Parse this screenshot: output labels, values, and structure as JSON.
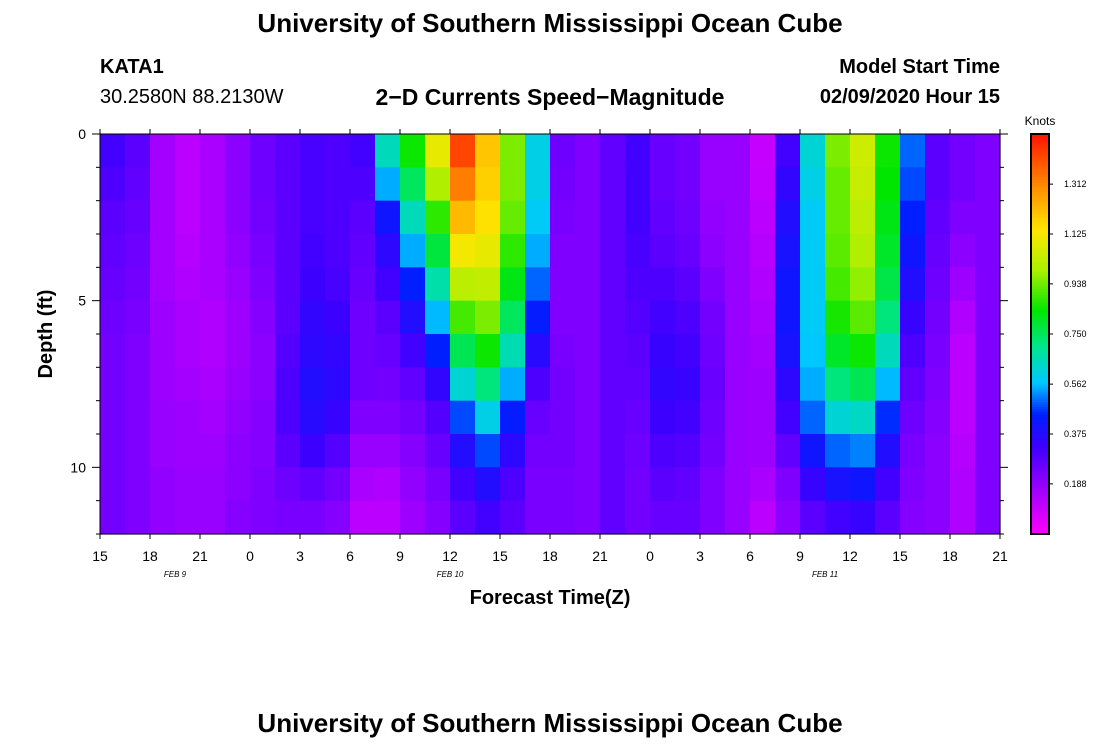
{
  "page": {
    "title_top": "University of Southern Mississippi Ocean Cube",
    "title_bottom": "University of Southern Mississippi Ocean Cube",
    "station_id": "KATA1",
    "station_coords": "30.2580N 88.2130W",
    "plot_title": "2−D Currents Speed−Magnitude",
    "model_start_label": "Model Start Time",
    "model_start_value": "02/09/2020 Hour 15"
  },
  "chart_data": {
    "type": "heatmap",
    "title": "2−D Currents Speed−Magnitude",
    "xlabel": "Forecast Time(Z)",
    "ylabel": "Depth (ft)",
    "x_tick_labels": [
      "15",
      "18",
      "21",
      "0",
      "3",
      "6",
      "9",
      "12",
      "15",
      "18",
      "21",
      "0",
      "3",
      "6",
      "9",
      "12",
      "15",
      "18",
      "21"
    ],
    "x_hours": [
      0,
      54
    ],
    "x_tick_interval_hours": 3,
    "date_labels": [
      {
        "label": "FEB 9",
        "hour": 4.5
      },
      {
        "label": "FEB 10",
        "hour": 21
      },
      {
        "label": "FEB 11",
        "hour": 43.5
      }
    ],
    "y_ticks": [
      0,
      5,
      10
    ],
    "ylim": [
      0,
      12
    ],
    "y_reversed": true,
    "colorbar": {
      "unit": "Knots",
      "min": 0.0,
      "max": 1.5,
      "tick_values": [
        0.188,
        0.375,
        0.562,
        0.75,
        0.938,
        1.125,
        1.312
      ],
      "tick_labels": [
        "0.188",
        "0.375",
        "0.562",
        "0.750",
        "0.938",
        "1.125",
        "1.312"
      ]
    },
    "grid_notes": "Columns: 1.5-hour steps from hour 0 to 54. Rows: depth bins 0-12 ft (1 ft). Values in knots.",
    "speed_profile": {
      "depth_bins_ft": [
        0,
        1,
        2,
        3,
        4,
        5,
        6,
        7,
        8,
        9,
        10,
        11
      ],
      "column_centers_hours": [
        0.75,
        2.25,
        3.75,
        5.25,
        6.75,
        8.25,
        9.75,
        11.25,
        12.75,
        14.25,
        15.75,
        17.25,
        18.75,
        20.25,
        21.75,
        23.25,
        24.75,
        26.25,
        27.75,
        29.25,
        30.75,
        32.25,
        33.75,
        35.25,
        36.75,
        38.25,
        39.75,
        41.25,
        42.75,
        44.25,
        45.75,
        47.25,
        48.75,
        50.25,
        51.75,
        53.25
      ]
    },
    "values": [
      [
        0.32,
        0.3,
        0.28,
        0.27,
        0.26,
        0.25,
        0.24,
        0.24,
        0.24,
        0.24,
        0.24,
        0.24
      ],
      [
        0.28,
        0.27,
        0.26,
        0.25,
        0.24,
        0.23,
        0.22,
        0.22,
        0.22,
        0.22,
        0.22,
        0.22
      ],
      [
        0.16,
        0.16,
        0.16,
        0.16,
        0.16,
        0.17,
        0.17,
        0.17,
        0.18,
        0.18,
        0.19,
        0.19
      ],
      [
        0.12,
        0.12,
        0.12,
        0.13,
        0.14,
        0.15,
        0.15,
        0.16,
        0.17,
        0.17,
        0.18,
        0.18
      ],
      [
        0.15,
        0.15,
        0.15,
        0.15,
        0.15,
        0.14,
        0.14,
        0.15,
        0.16,
        0.17,
        0.18,
        0.18
      ],
      [
        0.2,
        0.2,
        0.2,
        0.19,
        0.18,
        0.17,
        0.17,
        0.18,
        0.19,
        0.2,
        0.2,
        0.21
      ],
      [
        0.25,
        0.25,
        0.24,
        0.23,
        0.22,
        0.21,
        0.2,
        0.2,
        0.21,
        0.21,
        0.22,
        0.22
      ],
      [
        0.28,
        0.28,
        0.28,
        0.28,
        0.28,
        0.28,
        0.29,
        0.3,
        0.3,
        0.28,
        0.25,
        0.23
      ],
      [
        0.31,
        0.31,
        0.31,
        0.32,
        0.33,
        0.35,
        0.36,
        0.38,
        0.37,
        0.33,
        0.27,
        0.23
      ],
      [
        0.3,
        0.3,
        0.3,
        0.3,
        0.31,
        0.33,
        0.35,
        0.36,
        0.34,
        0.29,
        0.24,
        0.21
      ],
      [
        0.32,
        0.3,
        0.28,
        0.27,
        0.26,
        0.25,
        0.25,
        0.25,
        0.22,
        0.18,
        0.15,
        0.12
      ],
      [
        0.65,
        0.55,
        0.42,
        0.36,
        0.32,
        0.28,
        0.26,
        0.24,
        0.22,
        0.18,
        0.14,
        0.12
      ],
      [
        0.85,
        0.75,
        0.65,
        0.55,
        0.45,
        0.38,
        0.32,
        0.27,
        0.24,
        0.21,
        0.19,
        0.17
      ],
      [
        1.1,
        1.0,
        0.88,
        0.78,
        0.67,
        0.56,
        0.45,
        0.35,
        0.29,
        0.26,
        0.23,
        0.21
      ],
      [
        1.42,
        1.33,
        1.22,
        1.12,
        1.02,
        0.9,
        0.76,
        0.62,
        0.48,
        0.38,
        0.32,
        0.28
      ],
      [
        1.2,
        1.18,
        1.15,
        1.1,
        1.03,
        0.95,
        0.85,
        0.72,
        0.6,
        0.48,
        0.38,
        0.32
      ],
      [
        0.95,
        0.95,
        0.93,
        0.88,
        0.82,
        0.75,
        0.66,
        0.55,
        0.44,
        0.36,
        0.3,
        0.28
      ],
      [
        0.6,
        0.6,
        0.58,
        0.55,
        0.5,
        0.44,
        0.37,
        0.3,
        0.26,
        0.24,
        0.23,
        0.23
      ],
      [
        0.25,
        0.24,
        0.23,
        0.22,
        0.22,
        0.22,
        0.23,
        0.24,
        0.24,
        0.24,
        0.23,
        0.23
      ],
      [
        0.22,
        0.22,
        0.22,
        0.22,
        0.22,
        0.22,
        0.22,
        0.22,
        0.22,
        0.22,
        0.22,
        0.22
      ],
      [
        0.27,
        0.27,
        0.27,
        0.27,
        0.27,
        0.27,
        0.27,
        0.27,
        0.27,
        0.27,
        0.27,
        0.27
      ],
      [
        0.32,
        0.32,
        0.32,
        0.31,
        0.3,
        0.29,
        0.28,
        0.27,
        0.26,
        0.25,
        0.24,
        0.24
      ],
      [
        0.26,
        0.26,
        0.27,
        0.28,
        0.3,
        0.32,
        0.34,
        0.35,
        0.33,
        0.3,
        0.28,
        0.26
      ],
      [
        0.24,
        0.24,
        0.25,
        0.26,
        0.28,
        0.3,
        0.32,
        0.34,
        0.32,
        0.29,
        0.27,
        0.26
      ],
      [
        0.18,
        0.18,
        0.19,
        0.2,
        0.22,
        0.24,
        0.25,
        0.26,
        0.25,
        0.24,
        0.22,
        0.22
      ],
      [
        0.18,
        0.18,
        0.18,
        0.18,
        0.18,
        0.18,
        0.18,
        0.18,
        0.18,
        0.18,
        0.18,
        0.18
      ],
      [
        0.1,
        0.11,
        0.12,
        0.13,
        0.14,
        0.15,
        0.16,
        0.17,
        0.17,
        0.17,
        0.15,
        0.12
      ],
      [
        0.32,
        0.35,
        0.38,
        0.4,
        0.42,
        0.42,
        0.4,
        0.36,
        0.32,
        0.27,
        0.22,
        0.2
      ],
      [
        0.62,
        0.6,
        0.58,
        0.58,
        0.58,
        0.58,
        0.57,
        0.55,
        0.5,
        0.42,
        0.34,
        0.28
      ],
      [
        0.95,
        0.93,
        0.93,
        0.92,
        0.9,
        0.86,
        0.8,
        0.72,
        0.62,
        0.5,
        0.4,
        0.32
      ],
      [
        1.05,
        1.04,
        1.02,
        1.0,
        0.97,
        0.92,
        0.85,
        0.76,
        0.64,
        0.52,
        0.42,
        0.34
      ],
      [
        0.85,
        0.84,
        0.82,
        0.8,
        0.77,
        0.72,
        0.65,
        0.56,
        0.46,
        0.38,
        0.32,
        0.28
      ],
      [
        0.5,
        0.48,
        0.45,
        0.42,
        0.38,
        0.34,
        0.3,
        0.27,
        0.25,
        0.23,
        0.22,
        0.21
      ],
      [
        0.28,
        0.28,
        0.27,
        0.26,
        0.25,
        0.24,
        0.23,
        0.22,
        0.21,
        0.2,
        0.2,
        0.2
      ],
      [
        0.24,
        0.24,
        0.22,
        0.2,
        0.17,
        0.14,
        0.12,
        0.12,
        0.12,
        0.13,
        0.14,
        0.14
      ],
      [
        0.22,
        0.22,
        0.22,
        0.22,
        0.22,
        0.22,
        0.22,
        0.22,
        0.22,
        0.22,
        0.22,
        0.22
      ]
    ]
  }
}
